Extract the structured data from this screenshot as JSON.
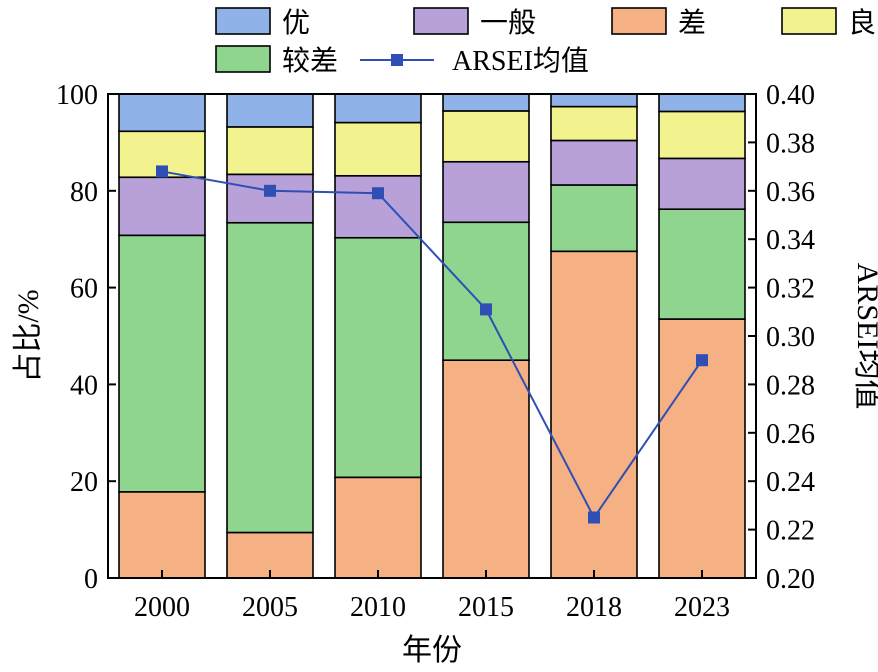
{
  "chart_data": {
    "type": "bar",
    "stacked": true,
    "categories": [
      "2000",
      "2005",
      "2010",
      "2015",
      "2018",
      "2023"
    ],
    "series": [
      {
        "name": "差",
        "color": "#F5B084",
        "values": [
          17.8,
          9.4,
          20.8,
          45.0,
          67.5,
          53.5
        ]
      },
      {
        "name": "较差",
        "color": "#8FD48F",
        "values": [
          53.0,
          64.0,
          49.5,
          28.5,
          13.7,
          22.7
        ]
      },
      {
        "name": "一般",
        "color": "#B7A1D8",
        "values": [
          12.0,
          10.0,
          12.8,
          12.5,
          9.2,
          10.5
        ]
      },
      {
        "name": "良",
        "color": "#F2F28E",
        "values": [
          9.5,
          9.8,
          11.0,
          10.5,
          7.0,
          9.7
        ]
      },
      {
        "name": "优",
        "color": "#8FB2E8",
        "values": [
          7.7,
          6.8,
          5.9,
          3.5,
          2.6,
          3.6
        ]
      }
    ],
    "line_series": {
      "name": "ARSEI均值",
      "color": "#2F4FB5",
      "axis": "right",
      "values": [
        0.368,
        0.36,
        0.359,
        0.311,
        0.225,
        0.29
      ]
    },
    "legend_order": [
      "优",
      "一般",
      "差",
      "良",
      "较差",
      "ARSEI均值"
    ],
    "xlabel": "年份",
    "ylabel": "占比/%",
    "ylabel_right": "ARSEI均值",
    "ylim": [
      0,
      100
    ],
    "ylim_right": [
      0.2,
      0.4
    ],
    "yticks": [
      0,
      20,
      40,
      60,
      80,
      100
    ],
    "yticks_right": [
      "0.20",
      "0.22",
      "0.24",
      "0.26",
      "0.28",
      "0.30",
      "0.32",
      "0.34",
      "0.36",
      "0.38",
      "0.40"
    ],
    "legend_placement": "top",
    "grid": false
  }
}
